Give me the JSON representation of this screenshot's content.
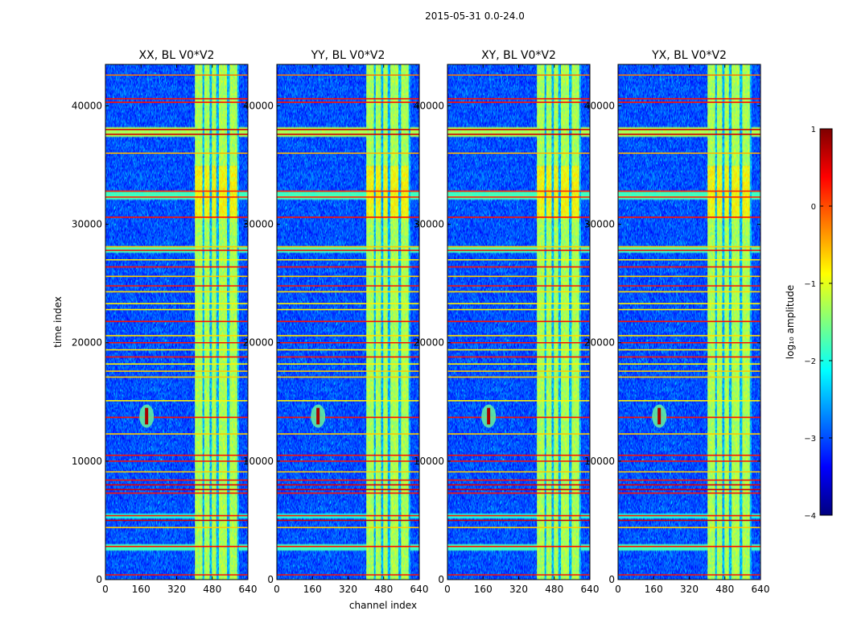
{
  "suptitle": "2015-05-31 0.0-24.0",
  "chart_data": {
    "type": "heatmap",
    "title": "2015-05-31 0.0-24.0",
    "xlabel": "channel index",
    "ylabel": "time index",
    "xlim": [
      0,
      640
    ],
    "ylim": [
      0,
      43500
    ],
    "x_ticks": [
      0,
      160,
      320,
      480,
      640
    ],
    "y_ticks": [
      0,
      10000,
      20000,
      30000,
      40000
    ],
    "colorbar": {
      "label": "log₁₀ amplitude",
      "range": [
        -4,
        1
      ],
      "ticks": [
        1,
        0,
        -1,
        -2,
        -3,
        -4
      ],
      "tick_labels": [
        "1",
        "0",
        "−1",
        "−2",
        "−3",
        "−4"
      ],
      "colormap": "jet",
      "colors": [
        "#00007f",
        "#0000ff",
        "#007fff",
        "#00ffff",
        "#7fff7f",
        "#ffff00",
        "#ff7f00",
        "#ff0000",
        "#7f0000"
      ]
    },
    "panels": [
      {
        "title": "XX, BL V0*V2"
      },
      {
        "title": "YY, BL V0*V2"
      },
      {
        "title": "XY, BL V0*V2"
      },
      {
        "title": "YX, BL V0*V2"
      }
    ],
    "features": {
      "rfi_channel_band": [
        402,
        600
      ],
      "rfi_sub_columns": [
        [
          402,
          435
        ],
        [
          445,
          468
        ],
        [
          478,
          498
        ],
        [
          510,
          545
        ],
        [
          558,
          592
        ]
      ],
      "source_spot": {
        "channel": 185,
        "time_center": 13800,
        "time_halfwidth": 700,
        "log_amplitude": 0.8
      },
      "background_log_amplitude": -3.0,
      "rfi_band_log_amplitude": -1.3,
      "flagged_time_rows": [
        {
          "t": 42600,
          "v": -0.2
        },
        {
          "t": 40600,
          "v": 0.3
        },
        {
          "t": 40300,
          "v": 0.3
        },
        {
          "t": 38000,
          "v": 0.6
        },
        {
          "t": 37600,
          "v": 0.6
        },
        {
          "t": 36000,
          "v": -0.5
        },
        {
          "t": 32800,
          "v": 0.2
        },
        {
          "t": 32300,
          "v": 0.2
        },
        {
          "t": 30600,
          "v": 0.3
        },
        {
          "t": 28100,
          "v": -0.6
        },
        {
          "t": 27800,
          "v": 0.4
        },
        {
          "t": 27000,
          "v": -0.8
        },
        {
          "t": 26400,
          "v": 0.3
        },
        {
          "t": 25600,
          "v": -0.6
        },
        {
          "t": 24800,
          "v": 0.3
        },
        {
          "t": 24300,
          "v": -0.7
        },
        {
          "t": 23300,
          "v": -0.8
        },
        {
          "t": 22800,
          "v": -0.8
        },
        {
          "t": 21800,
          "v": 0.3
        },
        {
          "t": 20600,
          "v": -0.7
        },
        {
          "t": 20000,
          "v": 0.3
        },
        {
          "t": 19400,
          "v": -0.8
        },
        {
          "t": 18800,
          "v": 0.3
        },
        {
          "t": 18200,
          "v": -0.8
        },
        {
          "t": 17600,
          "v": -0.6
        },
        {
          "t": 17100,
          "v": -0.6
        },
        {
          "t": 15100,
          "v": -0.8
        },
        {
          "t": 13700,
          "v": 0.3
        },
        {
          "t": 12300,
          "v": -0.6
        },
        {
          "t": 10500,
          "v": 0.3
        },
        {
          "t": 10000,
          "v": 0.3
        },
        {
          "t": 9100,
          "v": -0.6
        },
        {
          "t": 8400,
          "v": 0.3
        },
        {
          "t": 8000,
          "v": 0.5
        },
        {
          "t": 7600,
          "v": 0.6
        },
        {
          "t": 7300,
          "v": 0.3
        },
        {
          "t": 5400,
          "v": 0.3
        },
        {
          "t": 5000,
          "v": 0.6
        },
        {
          "t": 4400,
          "v": -0.6
        },
        {
          "t": 2800,
          "v": 0.3
        },
        {
          "t": 400,
          "v": 0.3
        }
      ],
      "elevated_time_bands": [
        [
          37400,
          38200,
          -1.3
        ],
        [
          32100,
          32700,
          -1.8
        ],
        [
          27600,
          28200,
          -1.8
        ],
        [
          5200,
          5600,
          -2.0
        ],
        [
          2500,
          3000,
          -1.8
        ]
      ]
    }
  }
}
